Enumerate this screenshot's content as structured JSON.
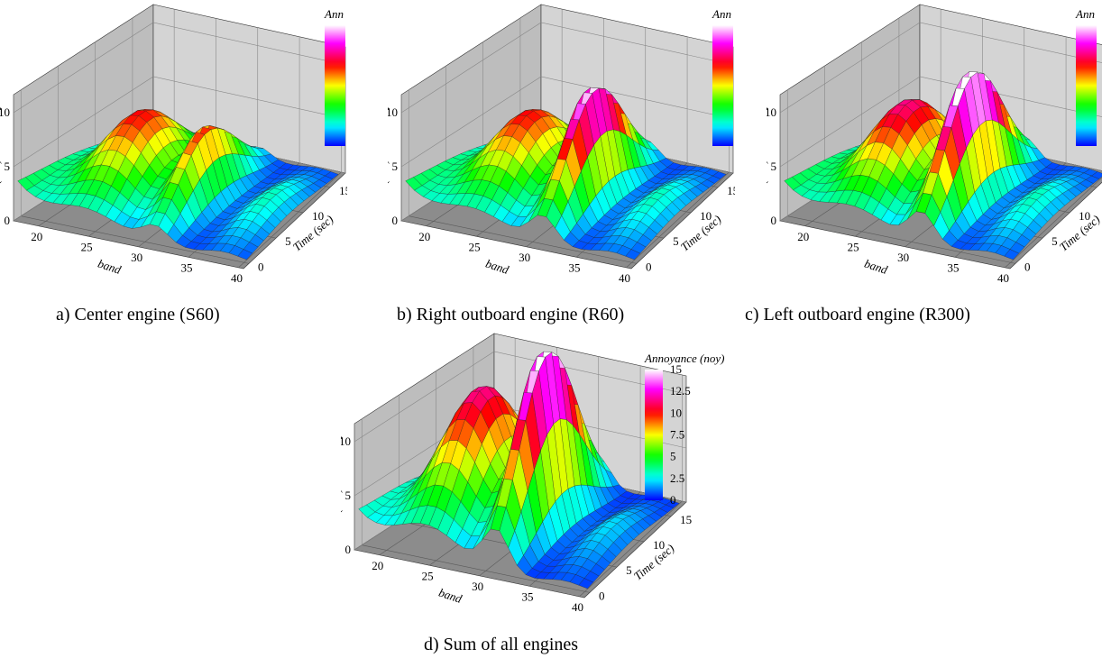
{
  "panels": [
    {
      "caption": "a) Center engine (S60)",
      "z_label": "Annoyance (noy)",
      "x_label": "band",
      "y_label": "Time (sec)",
      "z_ticks": [
        0,
        5,
        10
      ],
      "x_ticks": [
        20,
        25,
        30,
        35,
        40
      ],
      "y_ticks": [
        0,
        5,
        10,
        15
      ],
      "colorbar_title": "Ann"
    },
    {
      "caption": "b) Right outboard engine (R60)",
      "z_label": "Annoyance (noy)",
      "x_label": "band",
      "y_label": "Time (sec)",
      "z_ticks": [
        0,
        5,
        10
      ],
      "x_ticks": [
        20,
        25,
        30,
        35,
        40
      ],
      "y_ticks": [
        0,
        5,
        10,
        15
      ],
      "colorbar_title": "Ann"
    },
    {
      "caption": "c) Left outboard engine (R300)",
      "z_label": "Annoyance (noy)",
      "x_label": "band",
      "y_label": "Time (sec)",
      "z_ticks": [
        0,
        5,
        10
      ],
      "x_ticks": [
        20,
        25,
        30,
        35,
        40
      ],
      "y_ticks": [
        0,
        5,
        10,
        15
      ],
      "colorbar_title": "Ann"
    },
    {
      "caption": "d) Sum of all engines",
      "z_label": "Annoyance (noy)",
      "x_label": "band",
      "y_label": "Time (sec)",
      "z_ticks": [
        0,
        5,
        10
      ],
      "x_ticks": [
        20,
        25,
        30,
        35,
        40
      ],
      "y_ticks": [
        0,
        5,
        10,
        15
      ],
      "colorbar_title": "Annoyance (noy)",
      "colorbar_ticks": [
        15,
        12.5,
        10,
        7.5,
        5,
        2.5,
        0
      ]
    }
  ]
}
